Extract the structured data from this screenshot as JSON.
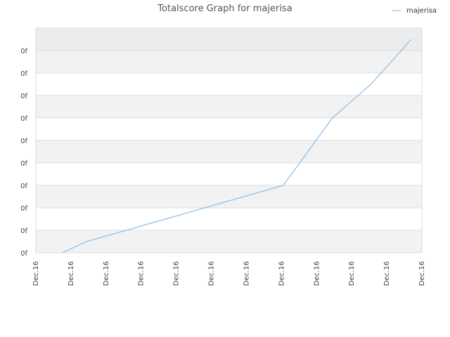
{
  "chart_data": {
    "type": "line",
    "title": "Totalscore Graph for majerisa",
    "xlabel": "",
    "ylabel": "",
    "x_tick_labels": [
      "Dec.16",
      "Dec.16",
      "Dec.16",
      "Dec.16",
      "Dec.16",
      "Dec.16",
      "Dec.16",
      "Dec.16",
      "Dec.16",
      "Dec.16",
      "Dec.16",
      "Dec.16"
    ],
    "y_tick_labels": [
      "0f",
      "0f",
      "0f",
      "0f",
      "0f",
      "0f",
      "0f",
      "0f",
      "0f",
      "0f"
    ],
    "ylim": [
      0,
      9
    ],
    "legend": {
      "position": "top-right",
      "entries": [
        "majerisa"
      ]
    },
    "grid": true,
    "series": [
      {
        "name": "majerisa",
        "color": "#88bbee",
        "x": [
          0.75,
          1.45,
          7.05,
          8.45,
          9.55,
          10.7
        ],
        "y": [
          0,
          0.5,
          3.0,
          6.0,
          7.5,
          9.5
        ]
      }
    ]
  },
  "colors": {
    "band_dark": "#f2f2f2",
    "band_light": "#ffffff",
    "top_band": "#ececec",
    "grid_line": "#dddddd"
  }
}
